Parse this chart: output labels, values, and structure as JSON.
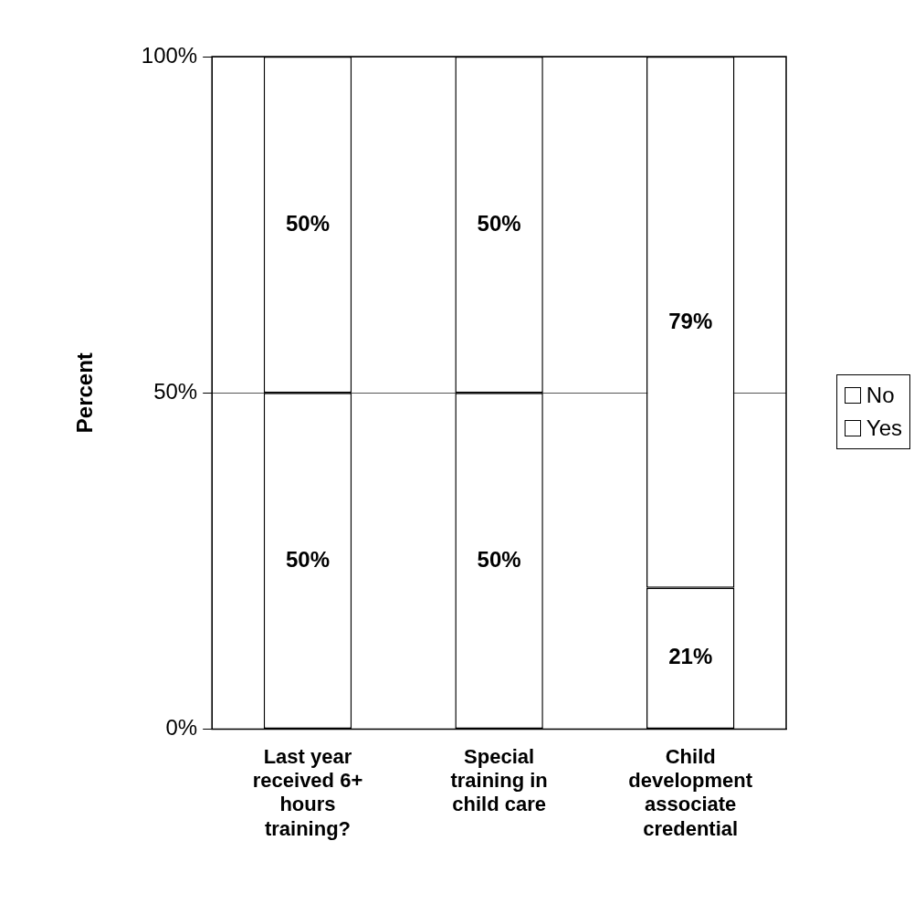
{
  "chart_data": {
    "type": "bar",
    "stacked": true,
    "ylabel": "Percent",
    "categories": [
      "Last year received 6+ hours training?",
      "Special training in child care",
      "Child development associate credential"
    ],
    "series": [
      {
        "name": "Yes",
        "color": "#ffffff",
        "values": [
          50,
          50,
          21
        ],
        "value_labels": [
          "50%",
          "50%",
          "21%"
        ]
      },
      {
        "name": "No",
        "color": "#ffffff",
        "values": [
          50,
          50,
          79
        ],
        "value_labels": [
          "50%",
          "50%",
          "79%"
        ]
      }
    ],
    "ylim": [
      0,
      100
    ],
    "yticks": [
      {
        "value": 0,
        "label": "0%"
      },
      {
        "value": 50,
        "label": "50%"
      },
      {
        "value": 100,
        "label": "100%"
      }
    ],
    "grid": "y",
    "legend": "right"
  }
}
